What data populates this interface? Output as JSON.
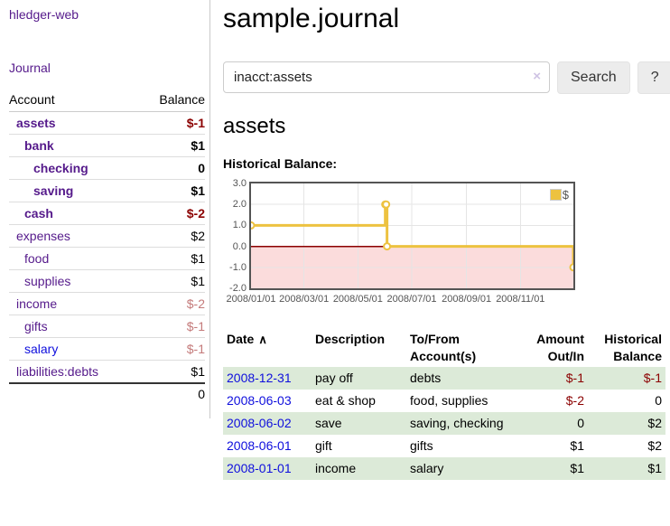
{
  "sidebar": {
    "app_title": "hledger-web",
    "journal_link": "Journal",
    "accounts": {
      "header_account": "Account",
      "header_balance": "Balance",
      "rows": [
        {
          "name": "assets",
          "balance": "$-1",
          "indent": 1,
          "bold": true,
          "name_style": "purple",
          "balance_style": "negative"
        },
        {
          "name": "bank",
          "balance": "$1",
          "indent": 2,
          "bold": true,
          "name_style": "purple",
          "balance_style": "normal"
        },
        {
          "name": "checking",
          "balance": "0",
          "indent": 3,
          "bold": true,
          "name_style": "purple",
          "balance_style": "normal"
        },
        {
          "name": "saving",
          "balance": "$1",
          "indent": 3,
          "bold": true,
          "name_style": "purple",
          "balance_style": "normal"
        },
        {
          "name": "cash",
          "balance": "$-2",
          "indent": 2,
          "bold": true,
          "name_style": "purple",
          "balance_style": "negative"
        },
        {
          "name": "expenses",
          "balance": "$2",
          "indent": 1,
          "bold": false,
          "name_style": "purple",
          "balance_style": "normal"
        },
        {
          "name": "food",
          "balance": "$1",
          "indent": 2,
          "bold": false,
          "name_style": "purple",
          "balance_style": "normal"
        },
        {
          "name": "supplies",
          "balance": "$1",
          "indent": 2,
          "bold": false,
          "name_style": "purple",
          "balance_style": "normal"
        },
        {
          "name": "income",
          "balance": "$-2",
          "indent": 1,
          "bold": false,
          "name_style": "purple",
          "balance_style": "muted-negative"
        },
        {
          "name": "gifts",
          "balance": "$-1",
          "indent": 2,
          "bold": false,
          "name_style": "purple",
          "balance_style": "muted-negative"
        },
        {
          "name": "salary",
          "balance": "$-1",
          "indent": 2,
          "bold": false,
          "name_style": "blue",
          "balance_style": "muted-negative"
        },
        {
          "name": "liabilities:debts",
          "balance": "$1",
          "indent": 1,
          "bold": false,
          "name_style": "purple",
          "balance_style": "normal"
        }
      ],
      "total": "0"
    }
  },
  "main": {
    "title": "sample.journal",
    "search": {
      "value": "inacct:assets",
      "clear_icon": "×",
      "button_label": "Search",
      "help_label": "?"
    },
    "account_heading": "assets",
    "chart_label": "Historical Balance:"
  },
  "chart_data": {
    "type": "line",
    "title": "Historical Balance",
    "step": true,
    "series": [
      {
        "name": "$",
        "color": "#edc240",
        "points": [
          [
            "2008-01-01",
            1
          ],
          [
            "2008-06-01",
            2
          ],
          [
            "2008-06-02",
            2
          ],
          [
            "2008-06-03",
            0
          ],
          [
            "2008-12-31",
            -1
          ]
        ]
      }
    ],
    "x_range": [
      "2008-01-01",
      "2008-12-31"
    ],
    "ylim": [
      -2,
      3
    ],
    "yticks": [
      {
        "value": 3,
        "label": "3.0"
      },
      {
        "value": 2,
        "label": "2.0"
      },
      {
        "value": 1,
        "label": "1.0"
      },
      {
        "value": 0,
        "label": "0.0"
      },
      {
        "value": -1,
        "label": "-1.0"
      },
      {
        "value": -2,
        "label": "-2.0"
      }
    ],
    "xticks": [
      {
        "date": "2008-01-01",
        "label": "2008/01/01"
      },
      {
        "date": "2008-03-01",
        "label": "2008/03/01"
      },
      {
        "date": "2008-05-01",
        "label": "2008/05/01"
      },
      {
        "date": "2008-07-01",
        "label": "2008/07/01"
      },
      {
        "date": "2008-09-01",
        "label": "2008/09/01"
      },
      {
        "date": "2008-11-01",
        "label": "2008/11/01"
      }
    ],
    "legend": {
      "label": "$",
      "position": "top-right"
    },
    "grid": true,
    "colors": {
      "grid_line": "#e5e5e5",
      "plot_border": "#545454",
      "zero_line": "#8b0000",
      "negative_region": "#fbdcdc",
      "marker_fill": "#ffffff"
    }
  },
  "register": {
    "columns": [
      {
        "label": "Date",
        "align": "left",
        "sorted": true
      },
      {
        "label": "Description",
        "align": "left"
      },
      {
        "label": "To/From Account(s)",
        "align": "left"
      },
      {
        "label": "Amount Out/In",
        "align": "right"
      },
      {
        "label": "Historical Balance",
        "align": "right"
      }
    ],
    "sort_icon": "∧",
    "rows": [
      {
        "date": "2008-12-31",
        "description": "pay off",
        "tofrom": "debts",
        "amount": "$-1",
        "amount_negative": true,
        "balance": "$-1",
        "balance_negative": true,
        "shaded": true
      },
      {
        "date": "2008-06-03",
        "description": "eat & shop",
        "tofrom": "food, supplies",
        "amount": "$-2",
        "amount_negative": true,
        "balance": "0",
        "balance_negative": false,
        "shaded": false
      },
      {
        "date": "2008-06-02",
        "description": "save",
        "tofrom": "saving, checking",
        "amount": "0",
        "amount_negative": false,
        "balance": "$2",
        "balance_negative": false,
        "shaded": true
      },
      {
        "date": "2008-06-01",
        "description": "gift",
        "tofrom": "gifts",
        "amount": "$1",
        "amount_negative": false,
        "balance": "$2",
        "balance_negative": false,
        "shaded": false
      },
      {
        "date": "2008-01-01",
        "description": "income",
        "tofrom": "salary",
        "amount": "$1",
        "amount_negative": false,
        "balance": "$1",
        "balance_negative": false,
        "shaded": true
      }
    ]
  },
  "ui_colors": {
    "link_purple": "#551a8b",
    "link_blue": "#0f0fdd",
    "negative_dark_red": "#8b0000",
    "negative_muted_rose": "#c47a7a",
    "shaded_row_green": "#dcead8",
    "series_gold": "#edc240"
  }
}
